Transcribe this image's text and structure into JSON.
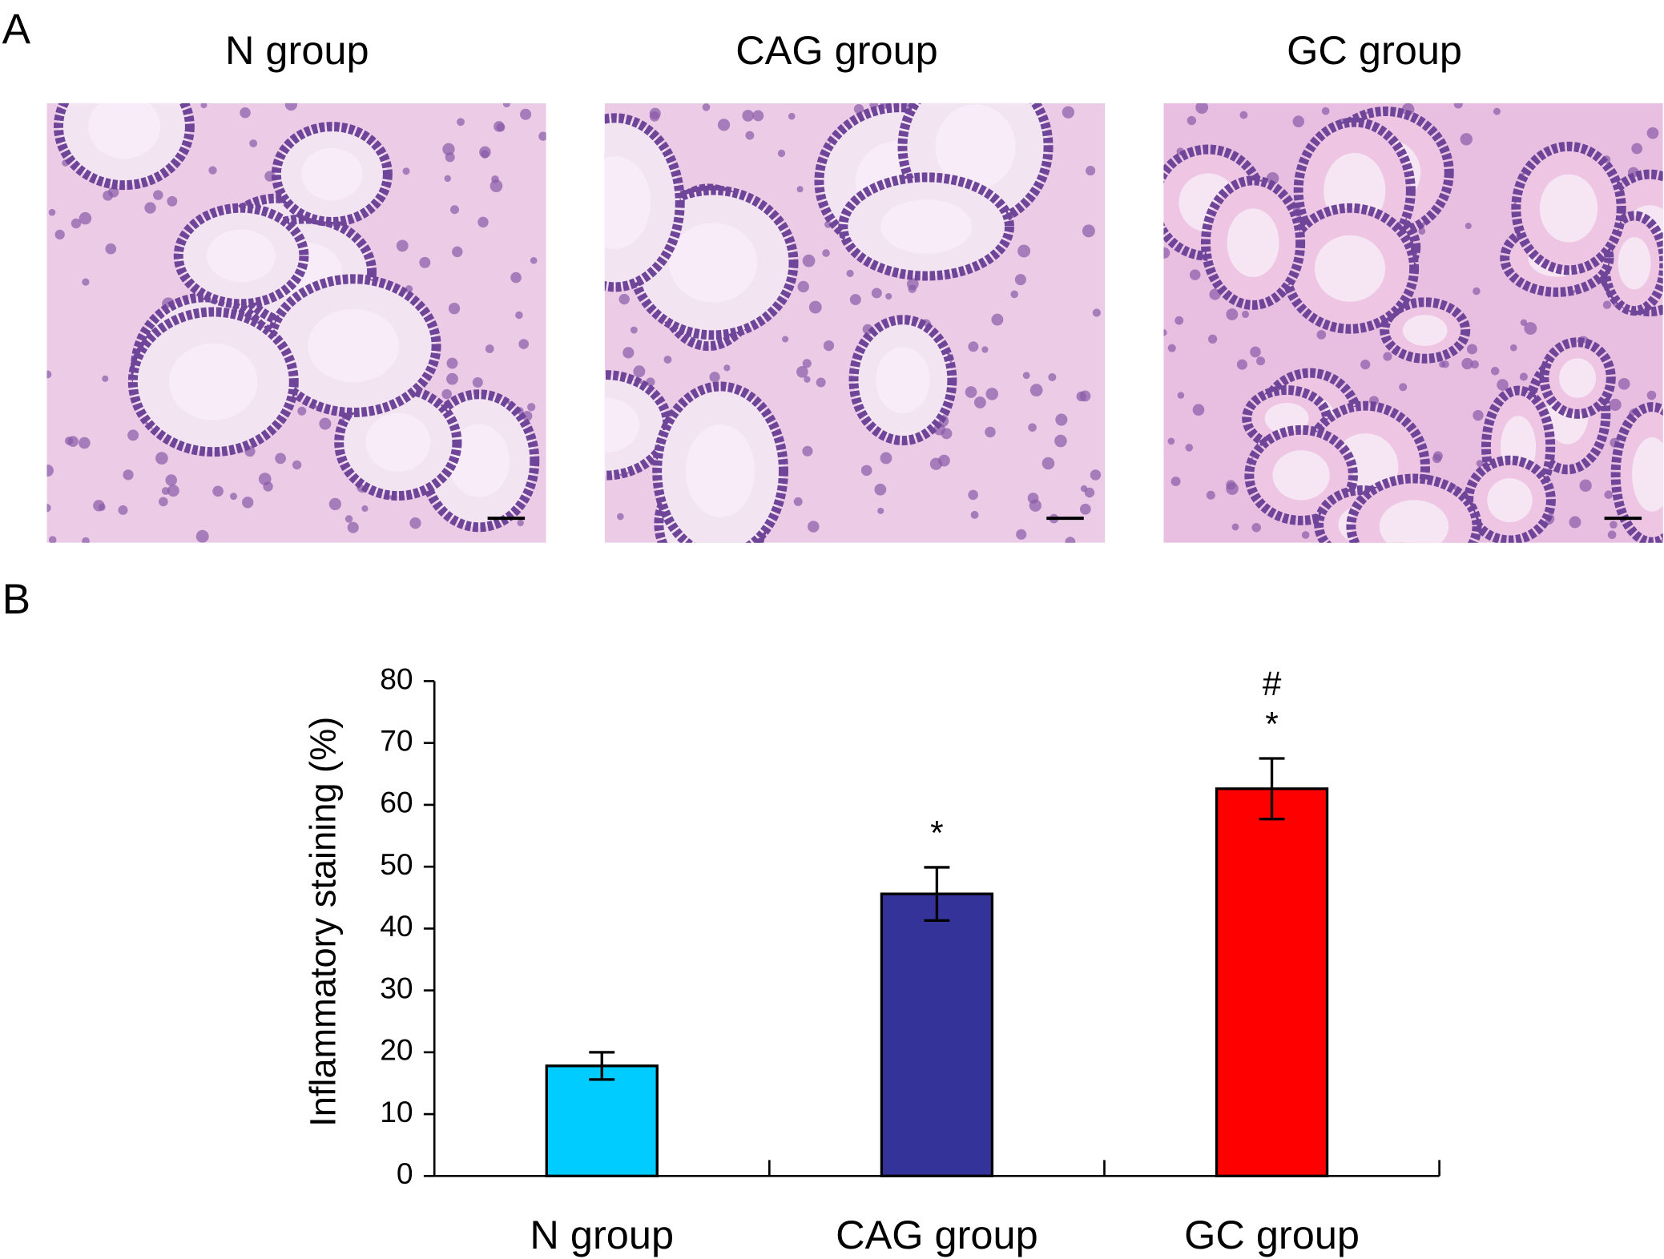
{
  "panels": {
    "a_label": "A",
    "b_label": "B",
    "image_titles": [
      "N group",
      "CAG group",
      "GC group"
    ]
  },
  "chart_data": {
    "type": "bar",
    "ylabel": "Inflammatory staining (%)",
    "categories": [
      "N group",
      "CAG group",
      "GC group"
    ],
    "values": [
      17.8,
      45.6,
      62.6
    ],
    "errors": [
      2.2,
      4.3,
      4.9
    ],
    "colors": [
      "#00ccff",
      "#333399",
      "#ff0000"
    ],
    "annotations": [
      [],
      [
        "*"
      ],
      [
        "*",
        "#"
      ]
    ],
    "ylim": [
      0,
      80
    ],
    "yticks": [
      0,
      10,
      20,
      30,
      40,
      50,
      60,
      70,
      80
    ],
    "grid": false
  }
}
